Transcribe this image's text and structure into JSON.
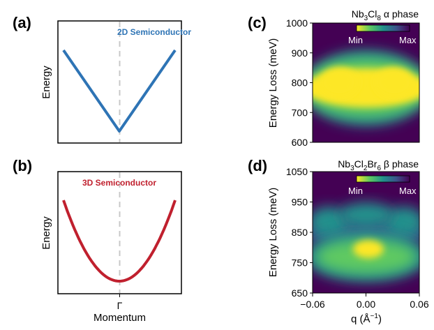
{
  "chart_data": [
    {
      "panel": "(a)",
      "type": "line",
      "annotation": "2D Semiconductor",
      "ylabel": "Energy",
      "xlabel": "",
      "color": "#2e74b5",
      "dispersion": "linear",
      "x": [
        -1,
        0,
        1
      ],
      "y": [
        0.9,
        0.0,
        0.9
      ]
    },
    {
      "panel": "(b)",
      "type": "line",
      "annotation": "3D Semiconductor",
      "ylabel": "Energy",
      "xlabel": "Momentum",
      "xticklabel": "Γ",
      "color": "#c0202e",
      "dispersion": "parabolic",
      "x": [
        -1,
        -0.5,
        0,
        0.5,
        1
      ],
      "y": [
        0.9,
        0.23,
        0.0,
        0.23,
        0.9
      ]
    },
    {
      "panel": "(c)",
      "type": "heatmap",
      "title_main": "Nb",
      "title_sub1": "3",
      "title_mid": "Cl",
      "title_sub2": "8",
      "title_end": " α phase",
      "ylabel": "Energy Loss (meV)",
      "xlabel": "",
      "ylim": [
        600,
        1000
      ],
      "yticks": [
        "1000",
        "900",
        "800",
        "700",
        "600"
      ],
      "xlim": [
        -0.06,
        0.06
      ],
      "colorbar_min": "Min",
      "colorbar_max": "Max"
    },
    {
      "panel": "(d)",
      "type": "heatmap",
      "title_main": "Nb",
      "title_sub1": "3",
      "title_mid": "Cl",
      "title_sub2": "2",
      "title_mid2": "Br",
      "title_sub3": "6",
      "title_end": " β phase",
      "ylabel": "Energy Loss (meV)",
      "xlabel": "q (Å",
      "xlabel_sup": "−1",
      "xlabel_end": ")",
      "ylim": [
        650,
        1050
      ],
      "yticks": [
        "1050",
        "950",
        "850",
        "750",
        "650"
      ],
      "xticks": [
        "−0.06",
        "0.00",
        "0.06"
      ],
      "xlim": [
        -0.06,
        0.06
      ],
      "colorbar_min": "Min",
      "colorbar_max": "Max"
    }
  ],
  "colors": {
    "viridis_dark": "#440154",
    "viridis_yellow": "#fde725"
  }
}
